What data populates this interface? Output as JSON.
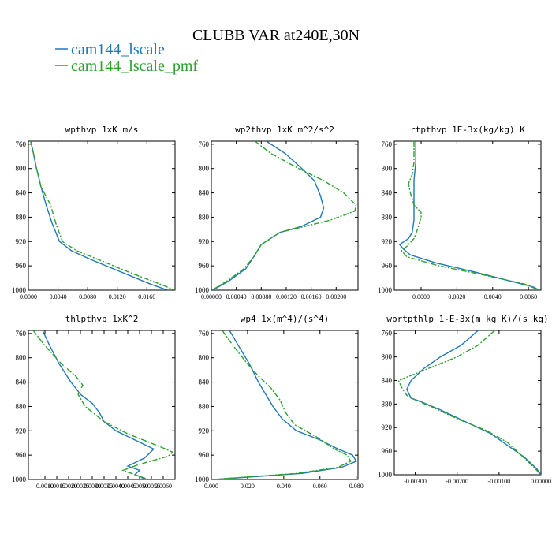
{
  "figure": {
    "title": "CLUBB VAR at240E,30N"
  },
  "legend": {
    "placement": "top-left",
    "entries": [
      {
        "label": "cam144_lscale",
        "color": "#1f77b4",
        "dash": "solid"
      },
      {
        "label": "cam144_lscale_pmf",
        "color": "#2ca02c",
        "dash": "dashdot"
      }
    ]
  },
  "chart_data": [
    {
      "type": "line",
      "title": "wpthvp  1xK m/s",
      "xlim": [
        0,
        0.0198
      ],
      "ylim": [
        1000,
        755
      ],
      "xticks": [
        0,
        0.004,
        0.008,
        0.012,
        0.016
      ],
      "xtick_labels": [
        "0.0000",
        "0.0040",
        "0.0080",
        "0.0120",
        "0.0160"
      ],
      "yticks": [
        760,
        800,
        840,
        880,
        920,
        960,
        1000
      ],
      "ytick_labels": [
        "760",
        "800",
        "840",
        "880",
        "920",
        "960",
        "1000"
      ],
      "series": [
        {
          "y": [
            755,
            770,
            800,
            830,
            860,
            890,
            920,
            935,
            950,
            970,
            990,
            1000
          ],
          "x": [
            0.0003,
            0.0006,
            0.0011,
            0.0017,
            0.0024,
            0.0032,
            0.0042,
            0.0058,
            0.0085,
            0.0125,
            0.0165,
            0.0188
          ]
        },
        {
          "y": [
            755,
            770,
            800,
            830,
            860,
            890,
            920,
            935,
            950,
            970,
            990,
            1000
          ],
          "x": [
            0.0003,
            0.0006,
            0.0011,
            0.0017,
            0.003,
            0.0037,
            0.0046,
            0.0065,
            0.0095,
            0.0135,
            0.0178,
            0.0198
          ]
        }
      ]
    },
    {
      "type": "line",
      "title": "wp2thvp  1xK m^2/s^2",
      "xlim": [
        0,
        0.00235
      ],
      "ylim": [
        1000,
        755
      ],
      "xticks": [
        0,
        0.0004,
        0.0008,
        0.0012,
        0.0016,
        0.002
      ],
      "xtick_labels": [
        "0.00000",
        "0.00040",
        "0.00080",
        "0.00120",
        "0.00160",
        "0.00200"
      ],
      "yticks": [
        760,
        800,
        840,
        880,
        920,
        960,
        1000
      ],
      "ytick_labels": [
        "760",
        "800",
        "840",
        "880",
        "920",
        "960",
        "1000"
      ],
      "series": [
        {
          "y": [
            755,
            775,
            800,
            820,
            845,
            865,
            880,
            895,
            905,
            925,
            945,
            965,
            985,
            1000
          ],
          "x": [
            0.00088,
            0.00118,
            0.00145,
            0.00165,
            0.00175,
            0.0018,
            0.00175,
            0.00145,
            0.0011,
            0.0008,
            0.00068,
            0.00055,
            0.00028,
            2e-05
          ]
        },
        {
          "y": [
            755,
            775,
            800,
            820,
            840,
            860,
            870,
            885,
            905,
            925,
            945,
            965,
            985,
            1000
          ],
          "x": [
            0.0007,
            0.00095,
            0.0014,
            0.0018,
            0.00212,
            0.00232,
            0.0023,
            0.0019,
            0.0011,
            0.0008,
            0.00068,
            0.00052,
            0.00025,
            1e-05
          ]
        }
      ]
    },
    {
      "type": "line",
      "title": "rtpthvp  1E-3x(kg/kg) K",
      "xlim": [
        -0.0015,
        0.0067
      ],
      "ylim": [
        1000,
        755
      ],
      "xticks": [
        0,
        0.002,
        0.004,
        0.006
      ],
      "xtick_labels": [
        "0.0000",
        "0.0020",
        "0.0040",
        "0.0060"
      ],
      "yticks": [
        760,
        800,
        840,
        880,
        920,
        960,
        1000
      ],
      "ytick_labels": [
        "760",
        "800",
        "840",
        "880",
        "920",
        "960",
        "1000"
      ],
      "series": [
        {
          "y": [
            755,
            790,
            820,
            850,
            870,
            885,
            905,
            915,
            925,
            932,
            942,
            955,
            970,
            985,
            995,
            1000
          ],
          "x": [
            -0.0003,
            -0.0003,
            -0.0004,
            -0.0004,
            -0.0004,
            -0.0004,
            -0.0005,
            -0.0007,
            -0.0012,
            -0.001,
            -0.0006,
            0.0008,
            0.003,
            0.005,
            0.0063,
            0.0066
          ]
        },
        {
          "y": [
            755,
            790,
            810,
            825,
            840,
            860,
            872,
            880,
            900,
            915,
            928,
            935,
            945,
            960,
            975,
            990,
            1000
          ],
          "x": [
            -0.0004,
            -0.0004,
            -0.0005,
            -0.0007,
            -0.0006,
            -0.0004,
            0.0,
            0.0,
            -0.0002,
            -0.0004,
            -0.0008,
            -0.0011,
            -0.0008,
            0.001,
            0.0035,
            0.0058,
            0.0066
          ]
        }
      ]
    },
    {
      "type": "line",
      "title": "thlpthvp  1xK^2",
      "xlim": [
        0.0003,
        0.0065
      ],
      "ylim": [
        1000,
        755
      ],
      "xticks": [
        0.001,
        0.0015,
        0.002,
        0.0025,
        0.003,
        0.0035,
        0.004,
        0.0045,
        0.005,
        0.0055,
        0.006
      ],
      "xtick_labels": [
        "0.0010",
        "0.0015",
        "0.0020",
        "0.0025",
        "0.0030",
        "0.0035",
        "0.0040",
        "0.0045",
        "0.0050",
        "0.0055",
        "0.0060"
      ],
      "yticks": [
        760,
        800,
        840,
        880,
        920,
        960,
        1000
      ],
      "ytick_labels": [
        "760",
        "800",
        "840",
        "880",
        "920",
        "960",
        "1000"
      ],
      "series": [
        {
          "y": [
            755,
            780,
            810,
            840,
            860,
            875,
            890,
            905,
            920,
            935,
            950,
            965,
            978,
            985,
            992,
            998,
            1000
          ],
          "x": [
            0.0009,
            0.0012,
            0.0016,
            0.0021,
            0.0025,
            0.003,
            0.0033,
            0.0035,
            0.004,
            0.0048,
            0.0056,
            0.0052,
            0.0045,
            0.005,
            0.0048,
            0.0052,
            0.005
          ]
        },
        {
          "y": [
            755,
            780,
            810,
            830,
            845,
            860,
            880,
            905,
            925,
            945,
            955,
            962,
            975,
            985,
            995,
            1000
          ],
          "x": [
            0.0005,
            0.001,
            0.0017,
            0.0023,
            0.0026,
            0.0024,
            0.0027,
            0.0035,
            0.0045,
            0.0058,
            0.0064,
            0.0062,
            0.005,
            0.0043,
            0.005,
            0.0054
          ]
        }
      ]
    },
    {
      "type": "line",
      "title": "wp4  1x(m^4)/(s^4)",
      "xlim": [
        0,
        0.081
      ],
      "ylim": [
        1000,
        755
      ],
      "xticks": [
        0,
        0.02,
        0.04,
        0.06,
        0.08
      ],
      "xtick_labels": [
        "0.000",
        "0.020",
        "0.040",
        "0.060",
        "0.080"
      ],
      "yticks": [
        760,
        800,
        840,
        880,
        920,
        960,
        1000
      ],
      "ytick_labels": [
        "760",
        "800",
        "840",
        "880",
        "920",
        "960",
        "1000"
      ],
      "series": [
        {
          "y": [
            755,
            780,
            810,
            840,
            860,
            880,
            900,
            920,
            935,
            950,
            960,
            970,
            980,
            990,
            1000
          ],
          "x": [
            0.01,
            0.015,
            0.021,
            0.026,
            0.03,
            0.034,
            0.039,
            0.047,
            0.06,
            0.07,
            0.078,
            0.08,
            0.072,
            0.05,
            0.002
          ]
        },
        {
          "y": [
            755,
            780,
            810,
            830,
            850,
            870,
            890,
            910,
            930,
            950,
            960,
            970,
            980,
            990,
            1000
          ],
          "x": [
            0.006,
            0.012,
            0.02,
            0.026,
            0.033,
            0.038,
            0.041,
            0.046,
            0.058,
            0.068,
            0.075,
            0.077,
            0.07,
            0.047,
            0.001
          ]
        }
      ]
    },
    {
      "type": "line",
      "title": "wprtpthlp  1-E-3x(m kg K)/(s kg)",
      "xlim": [
        -0.0035,
        0
      ],
      "ylim": [
        1000,
        755
      ],
      "xticks": [
        -0.003,
        -0.002,
        -0.001,
        0
      ],
      "xtick_labels": [
        "-0.00300",
        "-0.00200",
        "-0.00100",
        "0.00000"
      ],
      "yticks": [
        760,
        800,
        840,
        880,
        920,
        960,
        1000
      ],
      "ytick_labels": [
        "760",
        "800",
        "840",
        "880",
        "920",
        "960",
        "1000"
      ],
      "series": [
        {
          "y": [
            755,
            780,
            800,
            820,
            840,
            855,
            870,
            875,
            890,
            910,
            930,
            950,
            970,
            990,
            1000
          ],
          "x": [
            -0.0015,
            -0.0019,
            -0.0024,
            -0.0028,
            -0.0031,
            -0.0032,
            -0.0031,
            -0.0029,
            -0.0024,
            -0.0018,
            -0.0012,
            -0.0008,
            -0.0004,
            -0.0001,
            0.0
          ]
        },
        {
          "y": [
            755,
            780,
            800,
            820,
            840,
            855,
            865,
            870,
            885,
            905,
            925,
            945,
            965,
            985,
            1000
          ],
          "x": [
            -0.0011,
            -0.0015,
            -0.002,
            -0.0027,
            -0.0034,
            -0.0033,
            -0.0032,
            -0.0031,
            -0.0026,
            -0.002,
            -0.0013,
            -0.0008,
            -0.0005,
            -0.0002,
            0.0
          ]
        }
      ]
    }
  ]
}
